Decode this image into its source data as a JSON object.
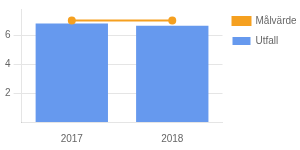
{
  "chart_data": {
    "type": "bar",
    "categories": [
      "2017",
      "2018"
    ],
    "series": [
      {
        "name": "Målvärde",
        "type": "line",
        "color": "#f5a020",
        "marker": "circle",
        "values": [
          7.0,
          7.0
        ]
      },
      {
        "name": "Utfall",
        "type": "bar",
        "color": "#6699ee",
        "values": [
          6.8,
          6.65
        ]
      }
    ],
    "ylim": [
      0,
      7.8
    ],
    "yticks": [
      2,
      4,
      6
    ],
    "grid": true,
    "legend": "right"
  }
}
